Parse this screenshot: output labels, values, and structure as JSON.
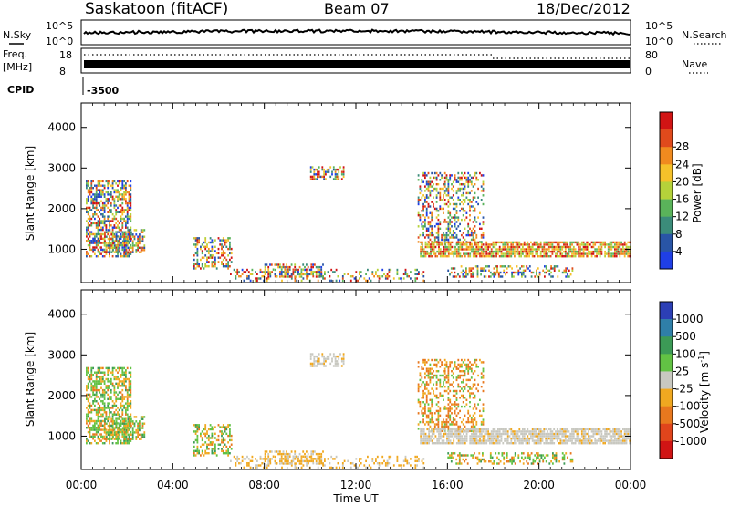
{
  "header": {
    "station": "Saskatoon (fitACF)",
    "beam": "Beam 07",
    "date": "18/Dec/2012"
  },
  "noise_panel": {
    "left_label": "N.Sky",
    "right_label": "N.Search",
    "left_ticks": [
      "10^5",
      "10^0"
    ],
    "right_ticks": [
      "10^5",
      "10^0"
    ]
  },
  "freq_panel": {
    "label_line1": "Freq.",
    "label_line2": "[MHz]",
    "left_ticks": [
      "18",
      "8"
    ],
    "right_ticks": [
      "80",
      "0"
    ],
    "right_label": "Nave"
  },
  "cpid": {
    "label": "CPID",
    "value": "-3500"
  },
  "x_axis": {
    "label": "Time UT",
    "ticks": [
      "00:00",
      "04:00",
      "08:00",
      "12:00",
      "16:00",
      "20:00",
      "00:00"
    ]
  },
  "power_panel": {
    "ylabel": "Slant Range [km]",
    "yticks": [
      "1000",
      "2000",
      "3000",
      "4000"
    ],
    "colorbar_label": "Power [dB]",
    "colorbar_ticks": [
      "4",
      "8",
      "12",
      "16",
      "20",
      "24",
      "28"
    ],
    "colors": [
      "#1f3fe6",
      "#2955a6",
      "#3b8c7a",
      "#5ab35a",
      "#b5d23a",
      "#f5c12a",
      "#f08a1f",
      "#e04a1c",
      "#d11414"
    ]
  },
  "velocity_panel": {
    "ylabel": "Slant Range [km]",
    "yticks": [
      "1000",
      "2000",
      "3000",
      "4000"
    ],
    "colorbar_label": "Velocity [m s^-1]",
    "colorbar_ticks": [
      "1000",
      "500",
      "100",
      "25",
      "-25",
      "-100",
      "-500",
      "-1000"
    ],
    "colors": [
      "#2c3fb5",
      "#2f7fa8",
      "#3c9a56",
      "#62c244",
      "#c8c8c0",
      "#f0a820",
      "#e8781e",
      "#e0451c",
      "#d01414"
    ]
  },
  "chart_data": {
    "type": "heatmap",
    "title": "Saskatoon (fitACF)",
    "xlabel": "Time UT",
    "ylabel": "Slant Range [km]",
    "x_range_hours": [
      0,
      24
    ],
    "ylim_km": [
      180,
      4600
    ],
    "scatter_regions": [
      {
        "name": "early",
        "t0": 0.2,
        "t1": 2.2,
        "r0": 800,
        "r1": 2700,
        "density": 0.55
      },
      {
        "name": "early-patch",
        "t0": 1.0,
        "t1": 2.8,
        "r0": 900,
        "r1": 1500,
        "density": 0.5
      },
      {
        "name": "dawn-streak",
        "t0": 4.9,
        "t1": 6.6,
        "r0": 500,
        "r1": 1300,
        "density": 0.45
      },
      {
        "name": "near-range",
        "t0": 6.5,
        "t1": 15.0,
        "r0": 200,
        "r1": 520,
        "density": 0.25
      },
      {
        "name": "morning-arc",
        "t0": 8.0,
        "t1": 10.6,
        "r0": 300,
        "r1": 650,
        "density": 0.45
      },
      {
        "name": "far-cluster",
        "t0": 10.0,
        "t1": 11.5,
        "r0": 2700,
        "r1": 3050,
        "density": 0.5
      },
      {
        "name": "evening-plume",
        "t0": 14.7,
        "t1": 17.6,
        "r0": 1100,
        "r1": 2900,
        "density": 0.35
      },
      {
        "name": "evening-band",
        "t0": 14.8,
        "t1": 24.0,
        "r0": 800,
        "r1": 1200,
        "density": 0.8
      },
      {
        "name": "low-band",
        "t0": 16.0,
        "t1": 21.5,
        "r0": 300,
        "r1": 600,
        "density": 0.35
      }
    ],
    "power_range_db": [
      0,
      30
    ],
    "velocity_range_ms": [
      -1000,
      1000
    ]
  }
}
